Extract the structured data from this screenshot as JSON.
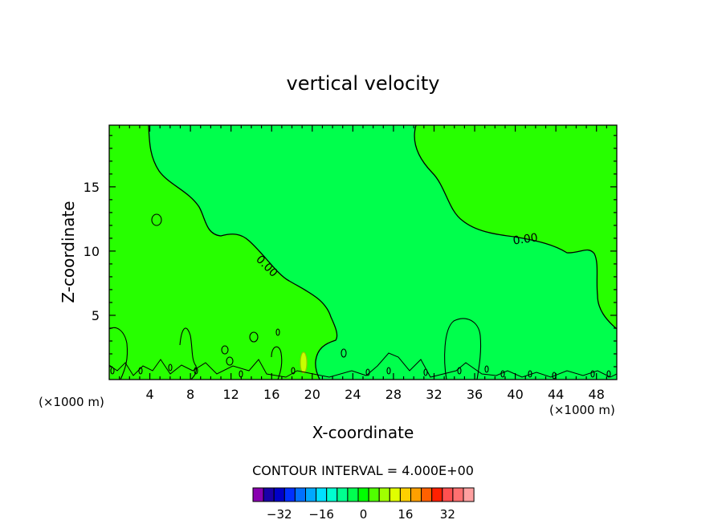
{
  "chart_data": {
    "type": "contour",
    "title": "vertical velocity",
    "xlabel": "X-coordinate",
    "ylabel": "Z-coordinate",
    "x_unit_left": "(×1000 m)",
    "x_unit_right": "(×1000 m)",
    "xlim": [
      0,
      50
    ],
    "ylim": [
      0,
      19.8
    ],
    "x_ticks": [
      4,
      8,
      12,
      16,
      20,
      24,
      28,
      32,
      36,
      40,
      44,
      48
    ],
    "y_ticks": [
      5,
      10,
      15
    ],
    "contour_labels": [
      {
        "text": "0.00",
        "x": 41.0,
        "z": 10.9,
        "angle": -8
      },
      {
        "text": "0.00",
        "x": 15.5,
        "z": 8.8,
        "angle": 45
      }
    ],
    "contour_interval_text": "CONTOUR INTERVAL = 4.000E+00",
    "colorbar": {
      "tick_labels": [
        "−32",
        "−16",
        "0",
        "16",
        "32"
      ],
      "colors": [
        "#8800b0",
        "#1a00a8",
        "#0000c8",
        "#0030ff",
        "#0070ff",
        "#00a8ff",
        "#00e0ff",
        "#00ffd0",
        "#00ff90",
        "#00ff50",
        "#00ff00",
        "#50ff00",
        "#a0ff00",
        "#e0ff00",
        "#ffd000",
        "#ffa000",
        "#ff6000",
        "#ff2000",
        "#ff5050",
        "#ff7070",
        "#ffa0a0"
      ]
    },
    "field_colors": {
      "low": "#27ff00",
      "high": "#00ff4c"
    }
  }
}
